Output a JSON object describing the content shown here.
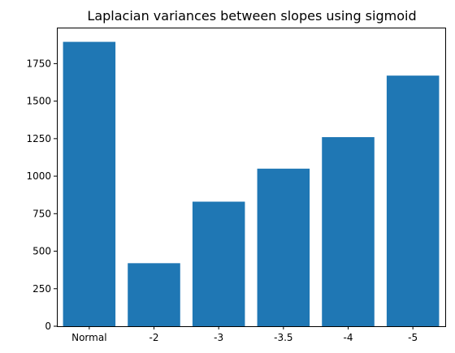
{
  "chart_data": {
    "type": "bar",
    "title": "Laplacian variances between slopes using sigmoid",
    "xlabel": "",
    "ylabel": "",
    "categories": [
      "Normal",
      "-2",
      "-3",
      "-3.5",
      "-4",
      "-5"
    ],
    "values": [
      1895,
      420,
      830,
      1050,
      1260,
      1670
    ],
    "ylim": [
      0,
      1990
    ],
    "yticks": [
      0,
      250,
      500,
      750,
      1000,
      1250,
      1500,
      1750
    ],
    "grid": false,
    "bar_color": "#1f77b4"
  }
}
